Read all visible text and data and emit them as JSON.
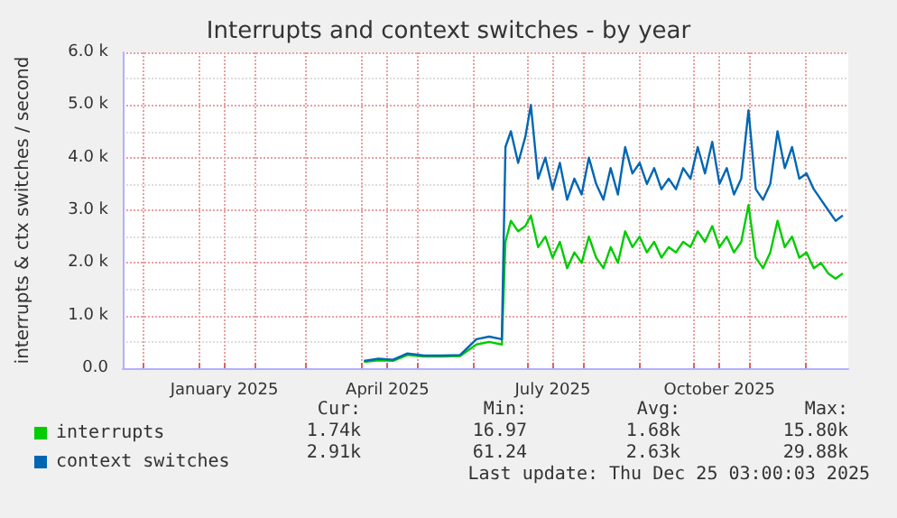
{
  "chart_data": {
    "type": "line",
    "title": "Interrupts and context switches - by year",
    "ylabel": "interrupts & ctx switches / second",
    "x": [
      "2025-04-02",
      "2025-04-10",
      "2025-04-18",
      "2025-04-26",
      "2025-05-05",
      "2025-05-15",
      "2025-05-25",
      "2025-06-03",
      "2025-06-10",
      "2025-06-17",
      "2025-06-19",
      "2025-06-22",
      "2025-06-26",
      "2025-06-30",
      "2025-07-03",
      "2025-07-07",
      "2025-07-11",
      "2025-07-15",
      "2025-07-19",
      "2025-07-23",
      "2025-07-27",
      "2025-07-31",
      "2025-08-04",
      "2025-08-08",
      "2025-08-12",
      "2025-08-16",
      "2025-08-20",
      "2025-08-24",
      "2025-08-28",
      "2025-09-01",
      "2025-09-05",
      "2025-09-09",
      "2025-09-13",
      "2025-09-17",
      "2025-09-21",
      "2025-09-25",
      "2025-09-29",
      "2025-10-03",
      "2025-10-07",
      "2025-10-11",
      "2025-10-15",
      "2025-10-19",
      "2025-10-23",
      "2025-10-27",
      "2025-10-31",
      "2025-11-04",
      "2025-11-08",
      "2025-11-12",
      "2025-11-16",
      "2025-11-20",
      "2025-11-24",
      "2025-11-28",
      "2025-12-02",
      "2025-12-06",
      "2025-12-10",
      "2025-12-14",
      "2025-12-18",
      "2025-12-22"
    ],
    "series": [
      {
        "name": "interrupts",
        "color": "#00cc00",
        "values": [
          120,
          150,
          140,
          250,
          220,
          220,
          230,
          450,
          500,
          450,
          2400,
          2800,
          2600,
          2700,
          2900,
          2300,
          2500,
          2100,
          2400,
          1900,
          2200,
          2000,
          2500,
          2100,
          1900,
          2300,
          2000,
          2600,
          2300,
          2500,
          2200,
          2400,
          2100,
          2300,
          2200,
          2400,
          2300,
          2600,
          2400,
          2700,
          2300,
          2500,
          2200,
          2400,
          3100,
          2100,
          1900,
          2200,
          2800,
          2300,
          2500,
          2100,
          2200,
          1900,
          2000,
          1800,
          1700,
          1800
        ]
      },
      {
        "name": "context switches",
        "color": "#0066b3",
        "values": [
          140,
          180,
          160,
          280,
          240,
          240,
          250,
          550,
          600,
          550,
          4200,
          4500,
          3900,
          4400,
          5000,
          3600,
          4000,
          3400,
          3900,
          3200,
          3600,
          3300,
          4000,
          3500,
          3200,
          3800,
          3300,
          4200,
          3700,
          3900,
          3500,
          3800,
          3400,
          3600,
          3400,
          3800,
          3600,
          4200,
          3700,
          4300,
          3500,
          3800,
          3300,
          3600,
          4900,
          3400,
          3200,
          3500,
          4500,
          3800,
          4200,
          3600,
          3700,
          3400,
          3200,
          3000,
          2800,
          2900
        ]
      }
    ],
    "xlim": [
      "2024-11-20",
      "2025-12-25"
    ],
    "xticks": [
      {
        "value": "2024-12-01",
        "label": null
      },
      {
        "value": "2025-01-01",
        "label": null
      },
      {
        "value": "2025-01-15",
        "label": "January 2025"
      },
      {
        "value": "2025-02-01",
        "label": null
      },
      {
        "value": "2025-03-01",
        "label": null
      },
      {
        "value": "2025-04-01",
        "label": null
      },
      {
        "value": "2025-04-15",
        "label": "April 2025"
      },
      {
        "value": "2025-05-01",
        "label": null
      },
      {
        "value": "2025-06-01",
        "label": null
      },
      {
        "value": "2025-07-01",
        "label": null
      },
      {
        "value": "2025-07-15",
        "label": "July 2025"
      },
      {
        "value": "2025-08-01",
        "label": null
      },
      {
        "value": "2025-09-01",
        "label": null
      },
      {
        "value": "2025-10-01",
        "label": null
      },
      {
        "value": "2025-10-15",
        "label": "October 2025"
      },
      {
        "value": "2025-11-01",
        "label": null
      },
      {
        "value": "2025-12-01",
        "label": null
      }
    ],
    "ylim": [
      0,
      6000
    ],
    "yticks": [
      {
        "value": 0,
        "label": "0.0"
      },
      {
        "value": 1000,
        "label": "1.0 k"
      },
      {
        "value": 2000,
        "label": "2.0 k"
      },
      {
        "value": 3000,
        "label": "3.0 k"
      },
      {
        "value": 4000,
        "label": "4.0 k"
      },
      {
        "value": 5000,
        "label": "5.0 k"
      },
      {
        "value": 6000,
        "label": "6.0 k"
      }
    ],
    "grid": true,
    "legend": "bottom left",
    "annotations": [
      "Cur:",
      "Min:",
      "Avg:",
      "Max:",
      "1.74k",
      "16.97",
      "1.68k",
      "15.80k",
      "2.91k",
      "61.24",
      "2.63k",
      "29.88k",
      "Last update: Thu Dec 25 03:00:03 2025"
    ]
  }
}
